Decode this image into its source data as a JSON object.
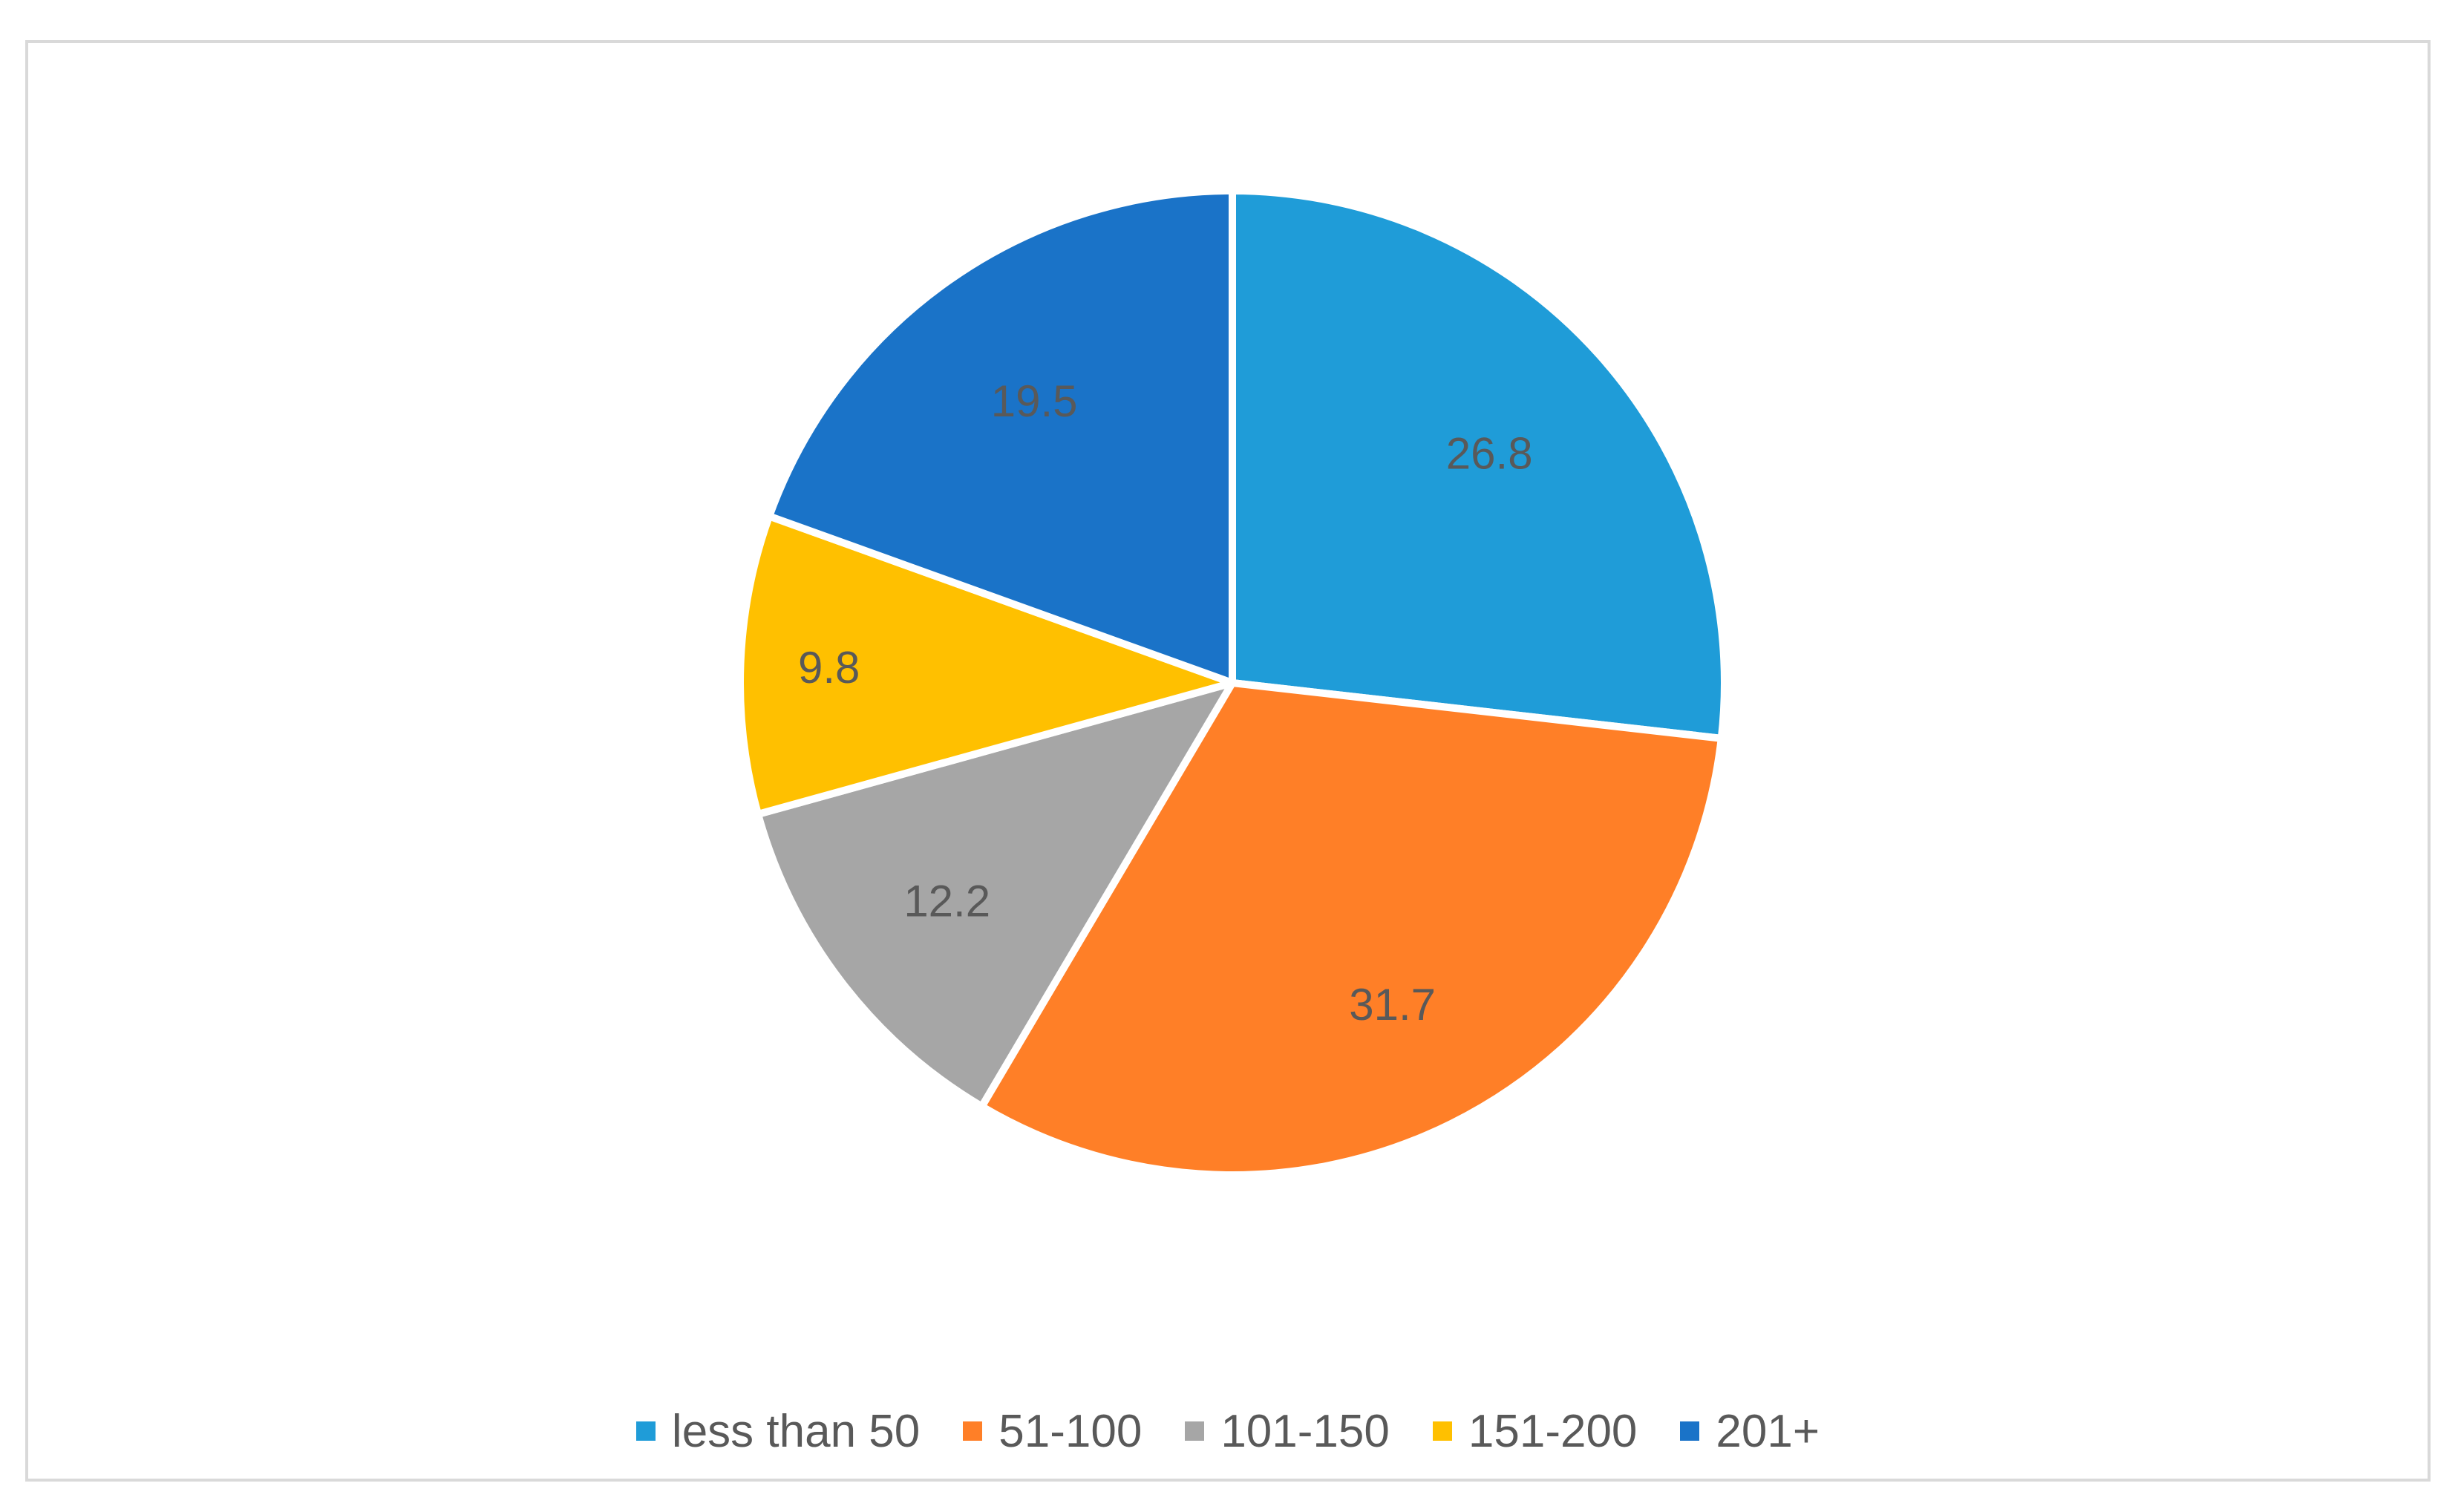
{
  "chart_data": {
    "type": "pie",
    "title": "",
    "categories": [
      "less than 50",
      "51-100",
      "101-150",
      "151-200",
      "201+"
    ],
    "values": [
      26.8,
      31.7,
      12.2,
      9.8,
      19.5
    ],
    "value_labels": [
      "26.8",
      "31.7",
      "12.2",
      "9.8",
      "19.5"
    ],
    "colors": [
      "#1F9CD8",
      "#FF7F27",
      "#A6A6A6",
      "#FFC000",
      "#1A73C8"
    ],
    "start_angle": "12 o'clock",
    "direction": "clockwise",
    "legend": {
      "placement": "bottom",
      "entries": [
        "less than 50",
        "51-100",
        "101-150",
        "151-200",
        "201+"
      ]
    }
  }
}
